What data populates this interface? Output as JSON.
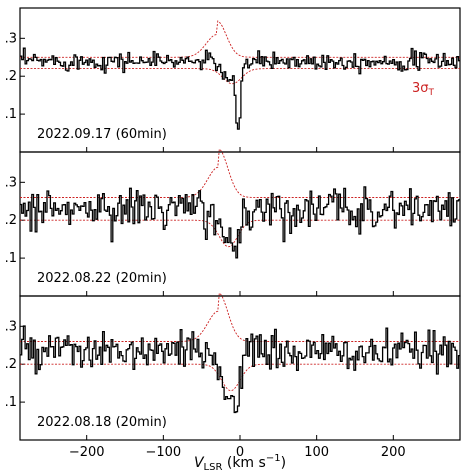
{
  "chart_data": {
    "type": "line",
    "shared_x_axis": {
      "ticks": [
        -200,
        -100,
        0,
        100,
        200
      ],
      "tick_labels": [
        "−200",
        "−100",
        "0",
        "100",
        "200"
      ],
      "xlim": [
        -287,
        287
      ],
      "label_main": "V",
      "label_sub": "LSR",
      "label_units": " (km s",
      "label_exp": "−1",
      "label_close": ")"
    },
    "threshold_label": {
      "text_main": "3σ",
      "text_sub": "T",
      "color": "#cc2222"
    },
    "colors": {
      "spectrum": "#000000",
      "threshold": "#cc2222"
    },
    "panels": [
      {
        "label": "2022.09.17 (60min)",
        "ylim": [
          0.0,
          0.38
        ],
        "y_ticks": [
          0.1,
          0.2,
          0.3
        ],
        "y_tick_labels": [
          ".1",
          ".2",
          ".3"
        ],
        "baseline": 0.24,
        "noise": 0.012,
        "absorption": [
          {
            "center": -12,
            "width": 9,
            "depth": 0.06
          },
          {
            "center": -3,
            "width": 3,
            "depth": 0.14
          }
        ],
        "threshold_upper": {
          "base": 0.25,
          "bump_center": -30,
          "bump_width": 14,
          "bump_height": 0.06
        },
        "threshold_lower": {
          "base": 0.22,
          "dip_center": -10,
          "dip_width": 12,
          "dip_depth": 0.04
        }
      },
      {
        "label": "2022.08.22 (20min)",
        "ylim": [
          0.0,
          0.38
        ],
        "y_ticks": [
          0.1,
          0.2,
          0.3
        ],
        "y_tick_labels": [
          ".1",
          ".2",
          ".3"
        ],
        "baseline": 0.23,
        "noise": 0.028,
        "absorption": [
          {
            "center": -20,
            "width": 8,
            "depth": 0.1
          },
          {
            "center": -5,
            "width": 4,
            "depth": 0.09
          }
        ],
        "threshold_upper": {
          "base": 0.26,
          "bump_center": -28,
          "bump_width": 14,
          "bump_height": 0.08
        },
        "threshold_lower": {
          "base": 0.2,
          "dip_center": -15,
          "dip_width": 12,
          "dip_depth": 0.07
        }
      },
      {
        "label": "2022.08.18 (20min)",
        "ylim": [
          0.0,
          0.38
        ],
        "y_ticks": [
          0.1,
          0.2,
          0.3
        ],
        "y_tick_labels": [
          ".1",
          ".2",
          ".3"
        ],
        "baseline": 0.23,
        "noise": 0.026,
        "absorption": [
          {
            "center": -18,
            "width": 8,
            "depth": 0.11
          },
          {
            "center": -4,
            "width": 4,
            "depth": 0.09
          }
        ],
        "threshold_upper": {
          "base": 0.26,
          "bump_center": -28,
          "bump_width": 14,
          "bump_height": 0.08
        },
        "threshold_lower": {
          "base": 0.2,
          "dip_center": -12,
          "dip_width": 12,
          "dip_depth": 0.07
        }
      }
    ]
  }
}
